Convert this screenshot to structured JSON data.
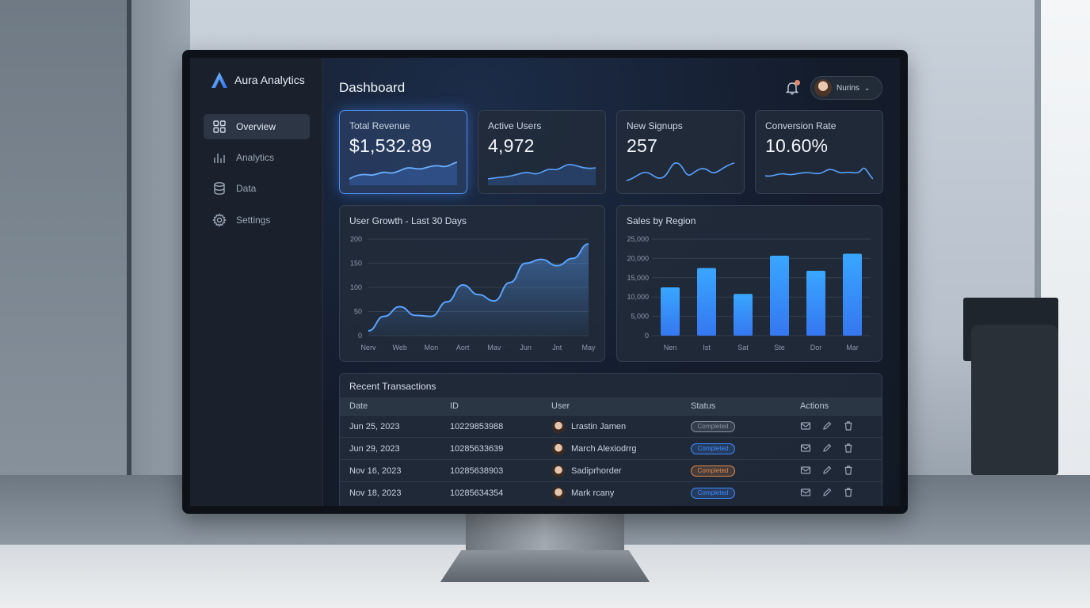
{
  "brand": {
    "name": "Aura Analytics"
  },
  "sidebar": {
    "items": [
      {
        "label": "Overview",
        "icon": "grid-icon",
        "active": true
      },
      {
        "label": "Analytics",
        "icon": "bar-chart-icon",
        "active": false
      },
      {
        "label": "Data",
        "icon": "database-icon",
        "active": false
      },
      {
        "label": "Settings",
        "icon": "gear-icon",
        "active": false
      }
    ]
  },
  "header": {
    "title": "Dashboard",
    "user_name": "Nurins",
    "notification_icon": "bell-icon"
  },
  "kpis": [
    {
      "label": "Total Revenue",
      "value": "$1,532.89"
    },
    {
      "label": "Active Users",
      "value": "4,972"
    },
    {
      "label": "New Signups",
      "value": "257"
    },
    {
      "label": "Conversion Rate",
      "value": "10.60%"
    }
  ],
  "colors": {
    "accent": "#4c8ef0",
    "bar": "#3a8dfb",
    "line": "#5aa3ff"
  },
  "chart_data": [
    {
      "type": "area",
      "title": "User Growth - Last 30 Days",
      "categories": [
        "Nerv",
        "Web",
        "Mon",
        "Aort",
        "Mav",
        "Jun",
        "Jnt",
        "May"
      ],
      "y_ticks": [
        0,
        50,
        100,
        150,
        200
      ],
      "ylim": [
        0,
        200
      ],
      "x": [
        0,
        0.5,
        1,
        1.5,
        2,
        2.5,
        3,
        3.5,
        4,
        4.5,
        5,
        5.5,
        6,
        6.5,
        7
      ],
      "values": [
        10,
        40,
        60,
        42,
        40,
        70,
        105,
        85,
        72,
        110,
        150,
        158,
        145,
        160,
        190
      ],
      "grid": true
    },
    {
      "type": "bar",
      "title": "Sales by Region",
      "categories": [
        "Nen",
        "Ist",
        "Sat",
        "Ste",
        "Dor",
        "Mar"
      ],
      "values": [
        12500,
        17500,
        10800,
        20700,
        16800,
        21200
      ],
      "y_ticks": [
        "0",
        "5,000",
        "10,000",
        "15,000",
        "20,000",
        "25,000"
      ],
      "ylim": [
        0,
        25000
      ],
      "grid": true
    }
  ],
  "transactions": {
    "title": "Recent Transactions",
    "columns": [
      "Date",
      "ID",
      "User",
      "Status",
      "Actions"
    ],
    "rows": [
      {
        "date": "Jun 25, 2023",
        "id": "10229853988",
        "user": "Lrastin Jamen",
        "status": "Completed",
        "status_color": "#8a93a0"
      },
      {
        "date": "Jun 29, 2023",
        "id": "10285633639",
        "user": "March Alexiodrrg",
        "status": "Completed",
        "status_color": "#3f8cff"
      },
      {
        "date": "Nov 16, 2023",
        "id": "10285638903",
        "user": "Sadiprhorder",
        "status": "Completed",
        "status_color": "#e08a4a"
      },
      {
        "date": "Nov 18, 2023",
        "id": "10285634354",
        "user": "Mark rcany",
        "status": "Completed",
        "status_color": "#3f8cff"
      }
    ]
  }
}
